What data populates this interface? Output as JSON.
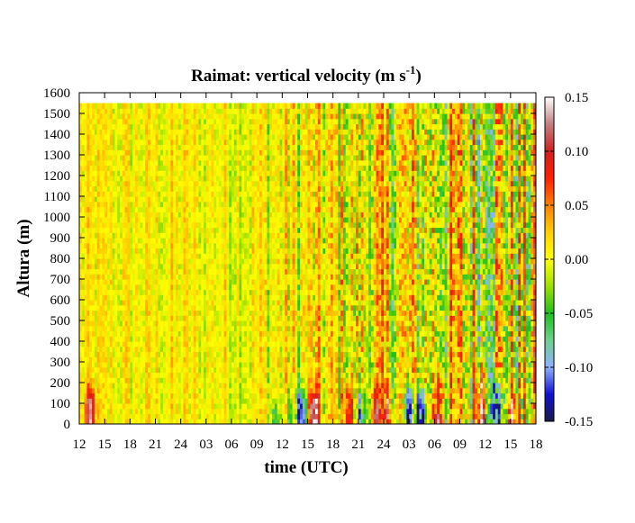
{
  "chart_data": {
    "type": "heatmap",
    "title": "Raimat: vertical velocity (m s",
    "title_superscript": "-1",
    "title_close": ")",
    "xlabel": "time (UTC)",
    "ylabel": "Altura (m)",
    "xticks": [
      "12",
      "15",
      "18",
      "21",
      "24",
      "03",
      "06",
      "09",
      "12",
      "15",
      "18",
      "21",
      "24",
      "03",
      "06",
      "09",
      "12",
      "15",
      "18"
    ],
    "yticks": [
      0,
      100,
      200,
      300,
      400,
      500,
      600,
      700,
      800,
      900,
      1000,
      1100,
      1200,
      1300,
      1400,
      1500,
      1600
    ],
    "ylim": [
      0,
      1600
    ],
    "data_top": 1550,
    "colorbar": {
      "ticks": [
        "0.15",
        "0.10",
        "0.05",
        "0.00",
        "-0.05",
        "-0.10",
        "-0.15"
      ],
      "range": [
        -0.15,
        0.15
      ],
      "colors": [
        "#1a1a4a",
        "#1010d0",
        "#8fb0ff",
        "#6fcf8f",
        "#1fbf1f",
        "#a0e000",
        "#ffff00",
        "#ffd000",
        "#ff8000",
        "#ff2000",
        "#d02020",
        "#c08080",
        "#ffffff"
      ]
    },
    "features": [
      {
        "time_h": 1.3,
        "height": 210,
        "w": 0.12
      },
      {
        "time_h": 23.2,
        "height": 130,
        "w": -0.06
      },
      {
        "time_h": 25.0,
        "height": 190,
        "w": -0.05
      },
      {
        "time_h": 26.3,
        "height": 220,
        "w": -0.13
      },
      {
        "time_h": 27.8,
        "height": 210,
        "w": 0.14
      },
      {
        "time_h": 31.8,
        "height": 230,
        "w": 0.1
      },
      {
        "time_h": 33.3,
        "height": 220,
        "w": -0.09
      },
      {
        "time_h": 35.0,
        "height": 230,
        "w": 0.07
      },
      {
        "time_h": 36.5,
        "height": 230,
        "w": 0.07
      },
      {
        "time_h": 39.0,
        "height": 250,
        "w": -0.15
      },
      {
        "time_h": 40.4,
        "height": 200,
        "w": -0.12
      },
      {
        "time_h": 42.5,
        "height": 290,
        "w": 0.12
      },
      {
        "time_h": 47.5,
        "height": 300,
        "w": 0.15
      },
      {
        "time_h": 49.5,
        "height": 260,
        "w": -0.15
      },
      {
        "time_h": 51.3,
        "height": 230,
        "w": 0.08
      }
    ]
  }
}
